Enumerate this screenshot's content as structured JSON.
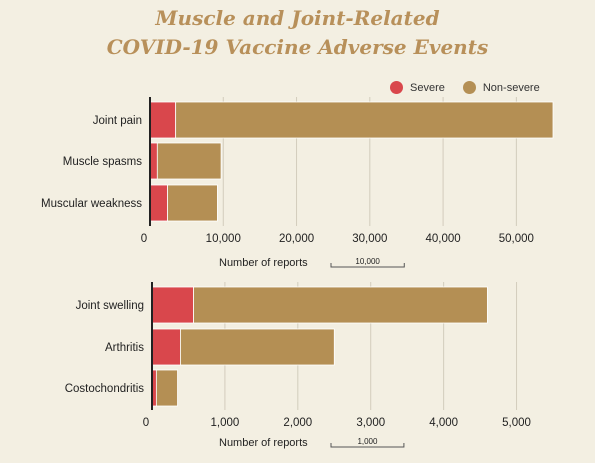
{
  "title_line1": "Muscle and Joint-Related",
  "title_line2": "COVID-19 Vaccine Adverse Events",
  "colors": {
    "severe": "#d9474c",
    "non_severe": "#b48f54",
    "grid": "#d2ccbc",
    "axis": "#222222"
  },
  "legend": {
    "severe": "Severe",
    "non_severe": "Non-severe"
  },
  "chart_data": [
    {
      "type": "bar",
      "orientation": "horizontal",
      "stacked": true,
      "categories": [
        "Joint pain",
        "Muscle spasms",
        "Muscular weakness"
      ],
      "series": [
        {
          "name": "Severe",
          "values": [
            3500,
            1000,
            2400
          ]
        },
        {
          "name": "Non-severe",
          "values": [
            51500,
            8700,
            6800
          ]
        }
      ],
      "xlim": [
        0,
        55000
      ],
      "xticks": [
        0,
        10000,
        20000,
        30000,
        40000,
        50000
      ],
      "xtick_labels": [
        "0",
        "10,000",
        "20,000",
        "30,000",
        "40,000",
        "50,000"
      ],
      "xlabel": "Number of reports",
      "scale_label": "10,000",
      "grid": true,
      "legend": "top-right"
    },
    {
      "type": "bar",
      "orientation": "horizontal",
      "stacked": true,
      "categories": [
        "Joint swelling",
        "Arthritis",
        "Costochondritis"
      ],
      "series": [
        {
          "name": "Severe",
          "values": [
            570,
            390,
            60
          ]
        },
        {
          "name": "Non-severe",
          "values": [
            4030,
            2110,
            290
          ]
        }
      ],
      "xlim": [
        0,
        5500
      ],
      "xticks": [
        0,
        1000,
        2000,
        3000,
        4000,
        5000
      ],
      "xtick_labels": [
        "0",
        "1,000",
        "2,000",
        "3,000",
        "4,000",
        "5,000"
      ],
      "xlabel": "Number of reports",
      "scale_label": "1,000",
      "grid": true
    }
  ]
}
